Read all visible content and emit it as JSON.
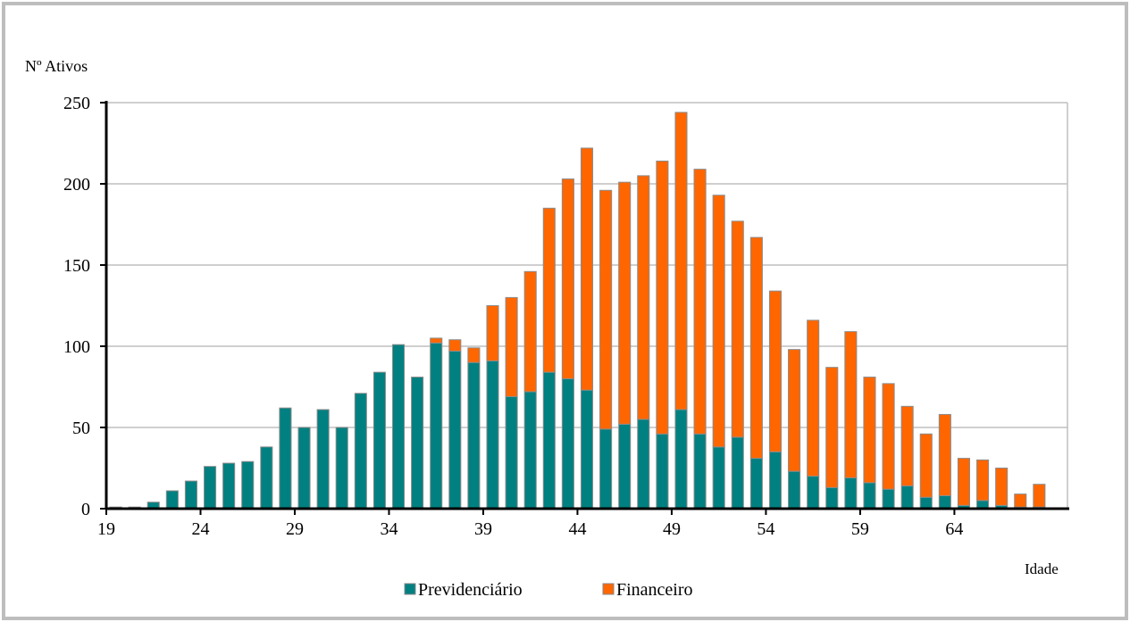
{
  "chart_data": {
    "type": "bar",
    "stacked": true,
    "title": "",
    "ylabel": "Nº Ativos",
    "xlabel": "Idade",
    "ylim": [
      0,
      250
    ],
    "yticks": [
      0,
      50,
      100,
      150,
      200,
      250
    ],
    "xtick_labels": [
      "19",
      "24",
      "29",
      "34",
      "39",
      "44",
      "49",
      "54",
      "59",
      "64"
    ],
    "grid": true,
    "legend_position": "bottom",
    "categories": [
      19,
      20,
      21,
      22,
      23,
      24,
      25,
      26,
      27,
      28,
      29,
      30,
      31,
      32,
      33,
      34,
      35,
      36,
      37,
      38,
      39,
      40,
      41,
      42,
      43,
      44,
      45,
      46,
      47,
      48,
      49,
      50,
      51,
      52,
      53,
      54,
      55,
      56,
      57,
      58,
      59,
      60,
      61,
      62,
      63,
      64,
      65,
      66,
      67,
      68,
      69
    ],
    "series": [
      {
        "name": "Previdenciário",
        "color": "#008080",
        "values": [
          1,
          1,
          4,
          11,
          17,
          26,
          28,
          29,
          38,
          62,
          50,
          61,
          50,
          71,
          84,
          101,
          81,
          102,
          97,
          90,
          91,
          69,
          72,
          84,
          80,
          73,
          49,
          52,
          55,
          46,
          61,
          46,
          38,
          44,
          31,
          35,
          23,
          20,
          13,
          19,
          16,
          12,
          14,
          7,
          8,
          2,
          5,
          2,
          1,
          1,
          0
        ]
      },
      {
        "name": "Financeiro",
        "color": "#ff6600",
        "values": [
          0,
          0,
          0,
          0,
          0,
          0,
          0,
          0,
          0,
          0,
          0,
          0,
          0,
          0,
          0,
          0,
          0,
          3,
          7,
          9,
          34,
          61,
          74,
          101,
          123,
          149,
          147,
          149,
          150,
          168,
          183,
          163,
          155,
          133,
          136,
          99,
          75,
          96,
          74,
          90,
          65,
          65,
          49,
          39,
          50,
          29,
          25,
          23,
          8,
          14,
          0
        ]
      }
    ]
  }
}
